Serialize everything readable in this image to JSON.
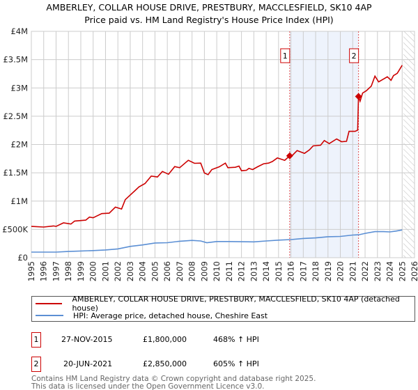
{
  "title": "AMBERLEY, COLLAR HOUSE DRIVE, PRESTBURY, MACCLESFIELD, SK10 4AP",
  "subtitle": "Price paid vs. HM Land Registry's House Price Index (HPI)",
  "chart_data": {
    "type": "line",
    "title": "AMBERLEY, COLLAR HOUSE DRIVE, PRESTBURY, MACCLESFIELD, SK10 4AP",
    "subtitle": "Price paid vs. HM Land Registry's House Price Index (HPI)",
    "xlim": [
      1995,
      2026
    ],
    "ylim": [
      0,
      4000000
    ],
    "x_ticks": [
      "1995",
      "1996",
      "1997",
      "1998",
      "1999",
      "2000",
      "2001",
      "2002",
      "2003",
      "2004",
      "2005",
      "2006",
      "2007",
      "2008",
      "2009",
      "2010",
      "2011",
      "2012",
      "2013",
      "2014",
      "2015",
      "2016",
      "2017",
      "2018",
      "2019",
      "2020",
      "2021",
      "2022",
      "2023",
      "2024",
      "2025",
      "2026"
    ],
    "y_ticks": [
      {
        "v": 0,
        "l": "£0"
      },
      {
        "v": 500000,
        "l": "£500K"
      },
      {
        "v": 1000000,
        "l": "£1M"
      },
      {
        "v": 1500000,
        "l": "£1.5M"
      },
      {
        "v": 2000000,
        "l": "£2M"
      },
      {
        "v": 2500000,
        "l": "£2.5M"
      },
      {
        "v": 3000000,
        "l": "£3M"
      },
      {
        "v": 3500000,
        "l": "£3.5M"
      },
      {
        "v": 4000000,
        "l": "£4M"
      }
    ],
    "grid": true,
    "shaded_range": [
      2015.9,
      2021.47
    ],
    "forecast_from": 2025.1,
    "series": [
      {
        "name": "AMBERLEY, COLLAR HOUSE DRIVE, PRESTBURY, MACCLESFIELD, SK10 4AP (detached house)",
        "color": "#cc0000",
        "x": [
          1995,
          1996,
          1996.8,
          1997,
          1997.6,
          1998.2,
          1998.5,
          1999.4,
          1999.7,
          2000,
          2000.7,
          2001.3,
          2001.8,
          2002.3,
          2002.6,
          2003,
          2003.4,
          2003.7,
          2004.2,
          2004.7,
          2005.2,
          2005.6,
          2006.1,
          2006.6,
          2007,
          2007.7,
          2008.2,
          2008.7,
          2009,
          2009.3,
          2009.6,
          2010.2,
          2010.7,
          2010.9,
          2011.5,
          2011.8,
          2012,
          2012.4,
          2012.6,
          2012.9,
          2013.3,
          2013.8,
          2014.2,
          2014.5,
          2014.9,
          2015.5,
          2015.9,
          2016,
          2016.5,
          2017.1,
          2017.5,
          2017.8,
          2018.4,
          2018.7,
          2019.1,
          2019.7,
          2020.1,
          2020.5,
          2020.7,
          2021.2,
          2021.4,
          2021.47,
          2021.6,
          2021.8,
          2022.1,
          2022.5,
          2022.8,
          2023.1,
          2023.8,
          2024.1,
          2024.3,
          2024.6,
          2025.0
        ],
        "y": [
          553000,
          541000,
          561000,
          553000,
          615000,
          594000,
          647000,
          664000,
          717000,
          705000,
          779000,
          787000,
          893000,
          860000,
          1025000,
          1106000,
          1188000,
          1250000,
          1311000,
          1442000,
          1426000,
          1524000,
          1475000,
          1610000,
          1590000,
          1721000,
          1668000,
          1672000,
          1496000,
          1467000,
          1557000,
          1606000,
          1672000,
          1590000,
          1598000,
          1618000,
          1537000,
          1545000,
          1578000,
          1557000,
          1606000,
          1660000,
          1672000,
          1700000,
          1762000,
          1721000,
          1800000,
          1782000,
          1893000,
          1844000,
          1905000,
          1975000,
          1988000,
          2070000,
          2016000,
          2098000,
          2049000,
          2057000,
          2233000,
          2233000,
          2254000,
          2850000,
          2766000,
          2909000,
          2950000,
          3032000,
          3209000,
          3106000,
          3196000,
          3135000,
          3217000,
          3258000,
          3401000
        ]
      },
      {
        "name": "HPI: Average price, detached house, Cheshire East",
        "color": "#5b8fd4",
        "x": [
          1995,
          1997,
          1998,
          2000,
          2001,
          2002,
          2003,
          2004,
          2005,
          2006,
          2007,
          2008,
          2008.7,
          2009.2,
          2010,
          2011,
          2012,
          2013,
          2014,
          2015,
          2016,
          2017,
          2018,
          2019,
          2020,
          2021,
          2021.5,
          2022,
          2022.8,
          2023.5,
          2024,
          2024.5,
          2025
        ],
        "y": [
          98000,
          98000,
          110000,
          125000,
          137000,
          155000,
          200000,
          225000,
          260000,
          265000,
          290000,
          305000,
          295000,
          265000,
          285000,
          285000,
          282000,
          280000,
          295000,
          310000,
          320000,
          340000,
          350000,
          370000,
          375000,
          400000,
          405000,
          430000,
          460000,
          460000,
          455000,
          470000,
          490000
        ]
      }
    ],
    "annotations": [
      {
        "label": "1",
        "x": 2015.9,
        "y": 1800000
      },
      {
        "label": "2",
        "x": 2021.47,
        "y": 2850000
      }
    ]
  },
  "legend": {
    "property": "AMBERLEY, COLLAR HOUSE DRIVE, PRESTBURY, MACCLESFIELD, SK10 4AP (detached house)",
    "hpi": "HPI: Average price, detached house, Cheshire East"
  },
  "sales": [
    {
      "n": "1",
      "date": "27-NOV-2015",
      "price": "£1,800,000",
      "hpi": "468% ↑ HPI"
    },
    {
      "n": "2",
      "date": "20-JUN-2021",
      "price": "£2,850,000",
      "hpi": "605% ↑ HPI"
    }
  ],
  "footer": {
    "line1": "Contains HM Land Registry data © Crown copyright and database right 2025.",
    "line2": "This data is licensed under the Open Government Licence v3.0."
  }
}
